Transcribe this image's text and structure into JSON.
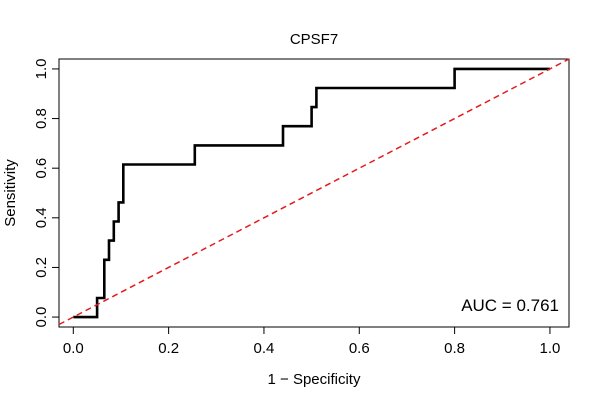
{
  "chart_data": {
    "type": "line",
    "title": "CPSF7",
    "xlabel": "1 − Specificity",
    "ylabel": "Sensitivity",
    "xlim": [
      -0.03,
      1.04
    ],
    "ylim": [
      -0.04,
      1.04
    ],
    "x_ticks": [
      "0.0",
      "0.2",
      "0.4",
      "0.6",
      "0.8",
      "1.0"
    ],
    "y_ticks": [
      "0.0",
      "0.2",
      "0.4",
      "0.6",
      "0.8",
      "1.0"
    ],
    "grid": false,
    "annotation": "AUC = 0.761",
    "series": [
      {
        "role": "roc",
        "color": "#000000",
        "x": [
          0.0,
          0.05,
          0.05,
          0.065,
          0.065,
          0.075,
          0.075,
          0.085,
          0.085,
          0.095,
          0.095,
          0.105,
          0.105,
          0.255,
          0.255,
          0.44,
          0.44,
          0.5,
          0.5,
          0.51,
          0.51,
          0.8,
          0.8,
          1.0
        ],
        "y": [
          0.0,
          0.0,
          0.077,
          0.077,
          0.231,
          0.231,
          0.308,
          0.308,
          0.385,
          0.385,
          0.462,
          0.462,
          0.615,
          0.615,
          0.692,
          0.692,
          0.769,
          0.769,
          0.846,
          0.846,
          0.923,
          0.923,
          1.0,
          1.0
        ]
      },
      {
        "role": "reference",
        "color": "#e41a1c",
        "x": [
          -0.03,
          1.04
        ],
        "y": [
          -0.03,
          1.04
        ]
      }
    ]
  }
}
